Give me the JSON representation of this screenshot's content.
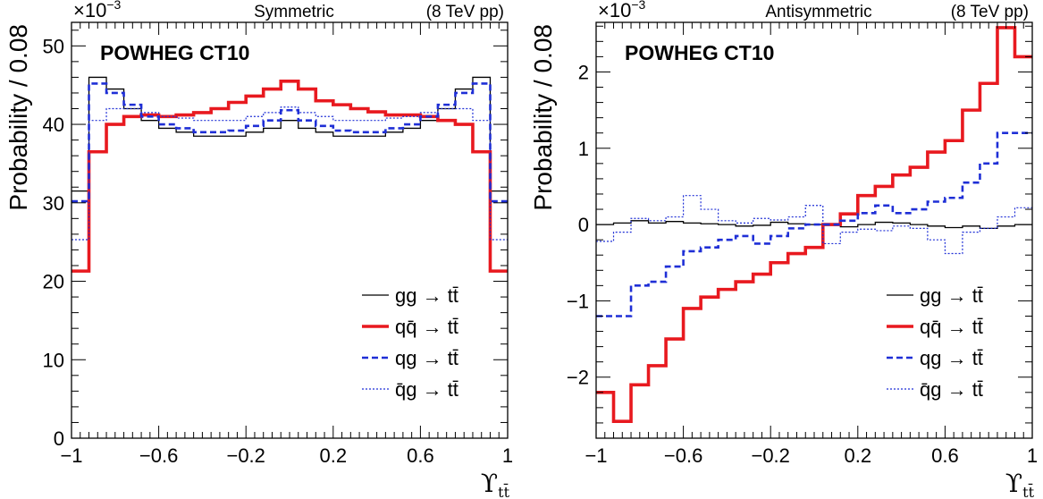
{
  "chart_data": [
    {
      "type": "step",
      "title": "Symmetric",
      "energy_label": "(8 TeV pp)",
      "generator_label": "POWHEG CT10",
      "multiplier_base": "×10",
      "multiplier_exp": "−3",
      "ylabel": "Probability / 0.08",
      "xlabel": "ϒ",
      "xlabel_sub": "tt̄",
      "xlim": [
        -1,
        1
      ],
      "ylim": [
        0,
        53
      ],
      "xticks": [
        -1,
        -0.6,
        -0.2,
        0.2,
        0.6,
        1
      ],
      "xtick_labels": [
        "−1",
        "−0.6",
        "−0.2",
        "0.2",
        "0.6",
        "1"
      ],
      "yticks": [
        0,
        10,
        20,
        30,
        40,
        50
      ],
      "ytick_labels": [
        "0",
        "10",
        "20",
        "30",
        "40",
        "50"
      ],
      "bin_edges": [
        -1,
        -0.92,
        -0.84,
        -0.76,
        -0.68,
        -0.6,
        -0.52,
        -0.44,
        -0.36,
        -0.28,
        -0.2,
        -0.12,
        -0.04,
        0.04,
        0.12,
        0.2,
        0.28,
        0.36,
        0.44,
        0.52,
        0.6,
        0.68,
        0.76,
        0.84,
        0.92,
        1.0
      ],
      "legend_position": "bottom-right",
      "series": [
        {
          "name": "gg → tt̄",
          "style": "thin-solid",
          "color": "#000000",
          "values": [
            31.5,
            46.0,
            44.5,
            42.0,
            40.5,
            39.5,
            39.0,
            38.5,
            38.5,
            38.5,
            39.0,
            39.5,
            40.5,
            39.5,
            39.0,
            38.5,
            38.5,
            38.5,
            39.0,
            39.5,
            40.5,
            42.0,
            44.5,
            46.0,
            31.5
          ]
        },
        {
          "name": "qq̄ → tt̄",
          "style": "thick-solid",
          "color": "#e8191f",
          "values": [
            21.3,
            36.5,
            40.0,
            41.0,
            41.2,
            41.0,
            41.2,
            41.5,
            42.0,
            42.8,
            43.6,
            44.5,
            45.5,
            44.5,
            43.0,
            42.5,
            42.0,
            41.6,
            41.2,
            41.2,
            41.0,
            40.5,
            40.0,
            36.5,
            21.3
          ]
        },
        {
          "name": "qg → tt̄",
          "style": "thick-dashed",
          "color": "#1f2fd6",
          "values": [
            30.2,
            45.2,
            44.0,
            42.5,
            41.0,
            40.0,
            39.5,
            39.0,
            39.0,
            39.2,
            39.8,
            40.5,
            41.8,
            40.5,
            39.8,
            39.2,
            39.0,
            39.0,
            39.5,
            40.0,
            41.0,
            42.5,
            44.0,
            45.2,
            30.2
          ]
        },
        {
          "name": "q̄g → tt̄",
          "style": "thin-dotted",
          "color": "#1f2fd6",
          "values": [
            25.3,
            40.5,
            42.0,
            42.0,
            41.5,
            41.0,
            40.8,
            40.5,
            40.5,
            40.5,
            41.0,
            41.5,
            42.2,
            41.5,
            41.0,
            40.5,
            40.5,
            40.5,
            40.8,
            41.0,
            41.5,
            42.0,
            42.0,
            40.5,
            25.3
          ]
        }
      ]
    },
    {
      "type": "step",
      "title": "Antisymmetric",
      "energy_label": "(8 TeV pp)",
      "generator_label": "POWHEG CT10",
      "multiplier_base": "×10",
      "multiplier_exp": "−3",
      "ylabel": "Probability / 0.08",
      "xlabel": "ϒ",
      "xlabel_sub": "tt̄",
      "xlim": [
        -1,
        1
      ],
      "ylim": [
        -2.8,
        2.65
      ],
      "xticks": [
        -1,
        -0.6,
        -0.2,
        0.2,
        0.6,
        1
      ],
      "xtick_labels": [
        "−1",
        "−0.6",
        "−0.2",
        "0.2",
        "0.6",
        "1"
      ],
      "yticks": [
        -2,
        -1,
        0,
        1,
        2
      ],
      "ytick_labels": [
        "−2",
        "−1",
        "0",
        "1",
        "2"
      ],
      "bin_edges": [
        -1,
        -0.92,
        -0.84,
        -0.76,
        -0.68,
        -0.6,
        -0.52,
        -0.44,
        -0.36,
        -0.28,
        -0.2,
        -0.12,
        -0.04,
        0.04,
        0.12,
        0.2,
        0.28,
        0.36,
        0.44,
        0.52,
        0.6,
        0.68,
        0.76,
        0.84,
        0.92,
        1.0
      ],
      "legend_position": "bottom-right",
      "series": [
        {
          "name": "gg → tt̄",
          "style": "thin-solid",
          "color": "#000000",
          "values": [
            0.0,
            0.02,
            0.05,
            0.02,
            0.04,
            0.02,
            0.01,
            0.0,
            -0.02,
            -0.01,
            0.03,
            0.01,
            0.0,
            -0.01,
            -0.03,
            0.0,
            0.03,
            0.02,
            0.0,
            -0.02,
            -0.04,
            -0.02,
            -0.05,
            -0.02,
            0.0
          ]
        },
        {
          "name": "qq̄ → tt̄",
          "style": "thick-solid",
          "color": "#e8191f",
          "values": [
            -2.2,
            -2.58,
            -2.1,
            -1.85,
            -1.5,
            -1.1,
            -0.95,
            -0.85,
            -0.75,
            -0.65,
            -0.5,
            -0.38,
            -0.3,
            0.0,
            0.14,
            0.38,
            0.5,
            0.65,
            0.75,
            0.95,
            1.1,
            1.5,
            1.85,
            2.58,
            2.2
          ]
        },
        {
          "name": "qg → tt̄",
          "style": "thick-dashed",
          "color": "#1f2fd6",
          "values": [
            -1.2,
            -1.2,
            -0.8,
            -0.75,
            -0.55,
            -0.35,
            -0.3,
            -0.2,
            -0.15,
            -0.25,
            -0.15,
            -0.05,
            0.0,
            0.0,
            0.05,
            0.15,
            0.25,
            0.15,
            0.2,
            0.3,
            0.35,
            0.55,
            0.8,
            1.2,
            1.2
          ]
        },
        {
          "name": "q̄g → tt̄",
          "style": "thin-dotted",
          "color": "#1f2fd6",
          "values": [
            -0.22,
            -0.1,
            0.08,
            0.05,
            0.1,
            0.38,
            0.2,
            0.05,
            0.02,
            0.08,
            0.06,
            0.1,
            0.25,
            -0.25,
            -0.1,
            -0.06,
            -0.08,
            -0.02,
            -0.05,
            -0.2,
            -0.38,
            -0.1,
            -0.05,
            0.1,
            0.22
          ]
        }
      ]
    }
  ]
}
